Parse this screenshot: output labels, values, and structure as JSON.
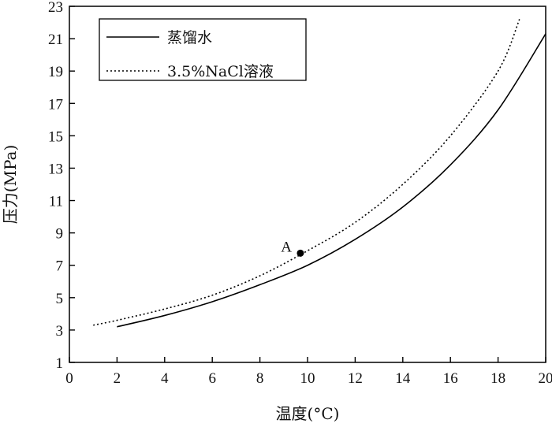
{
  "chart_data": {
    "type": "line",
    "xlabel": "温度(°C)",
    "ylabel": "压力(MPa)",
    "xlim": [
      0,
      20
    ],
    "ylim": [
      1,
      23
    ],
    "xticks": [
      0,
      2,
      4,
      6,
      8,
      10,
      12,
      14,
      16,
      18,
      20
    ],
    "yticks": [
      1,
      3,
      5,
      7,
      9,
      11,
      13,
      15,
      17,
      19,
      21,
      23
    ],
    "grid": false,
    "legend_position": "top-left",
    "series": [
      {
        "name": "蒸馏水",
        "style": "solid",
        "color": "#000000",
        "x": [
          2,
          4,
          6,
          8,
          10,
          12,
          14,
          16,
          18,
          20
        ],
        "y": [
          3.2,
          3.9,
          4.75,
          5.8,
          7.0,
          8.6,
          10.6,
          13.2,
          16.6,
          21.3
        ]
      },
      {
        "name": "3.5%NaCl溶液",
        "style": "dotted",
        "color": "#000000",
        "x": [
          1,
          2,
          4,
          6,
          8,
          10,
          12,
          14,
          16,
          18,
          18.9
        ],
        "y": [
          3.3,
          3.6,
          4.3,
          5.15,
          6.35,
          7.9,
          9.65,
          12.0,
          15.0,
          19.0,
          22.2
        ]
      }
    ],
    "annotations": [
      {
        "label": "A",
        "x": 9.7,
        "y": 7.75
      }
    ]
  }
}
